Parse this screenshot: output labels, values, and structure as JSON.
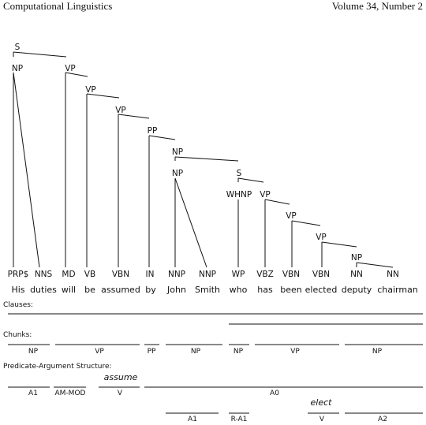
{
  "header": {
    "left": "Computational Linguistics",
    "right": "Volume 34, Number 2"
  },
  "tree": {
    "nodes": [
      "S",
      "NP",
      "VP",
      "VP",
      "VP",
      "PP",
      "NP",
      "NP",
      "S",
      "WHNP",
      "VP",
      "VP",
      "VP",
      "NP"
    ],
    "pos_tags": [
      "PRP$",
      "NNS",
      "MD",
      "VB",
      "VBN",
      "IN",
      "NNP",
      "NNP",
      "WP",
      "VBZ",
      "VBN",
      "VBN",
      "NN",
      "NN"
    ],
    "words": [
      "His",
      "duties",
      "will",
      "be",
      "assumed",
      "by",
      "John",
      "Smith",
      "who",
      "has",
      "been",
      "elected",
      "deputy",
      "chairman"
    ]
  },
  "sections": {
    "clauses": "Clauses:",
    "chunks": "Chunks:",
    "pas": "Predicate-Argument Structure:"
  },
  "chunks": [
    "NP",
    "VP",
    "PP",
    "NP",
    "NP",
    "VP",
    "NP"
  ],
  "pas": {
    "predicate_1": "assume",
    "predicate_2": "elect",
    "labels": [
      "A1",
      "AM-MOD",
      "V",
      "A0",
      "A1",
      "R-A1",
      "V",
      "A2"
    ]
  }
}
